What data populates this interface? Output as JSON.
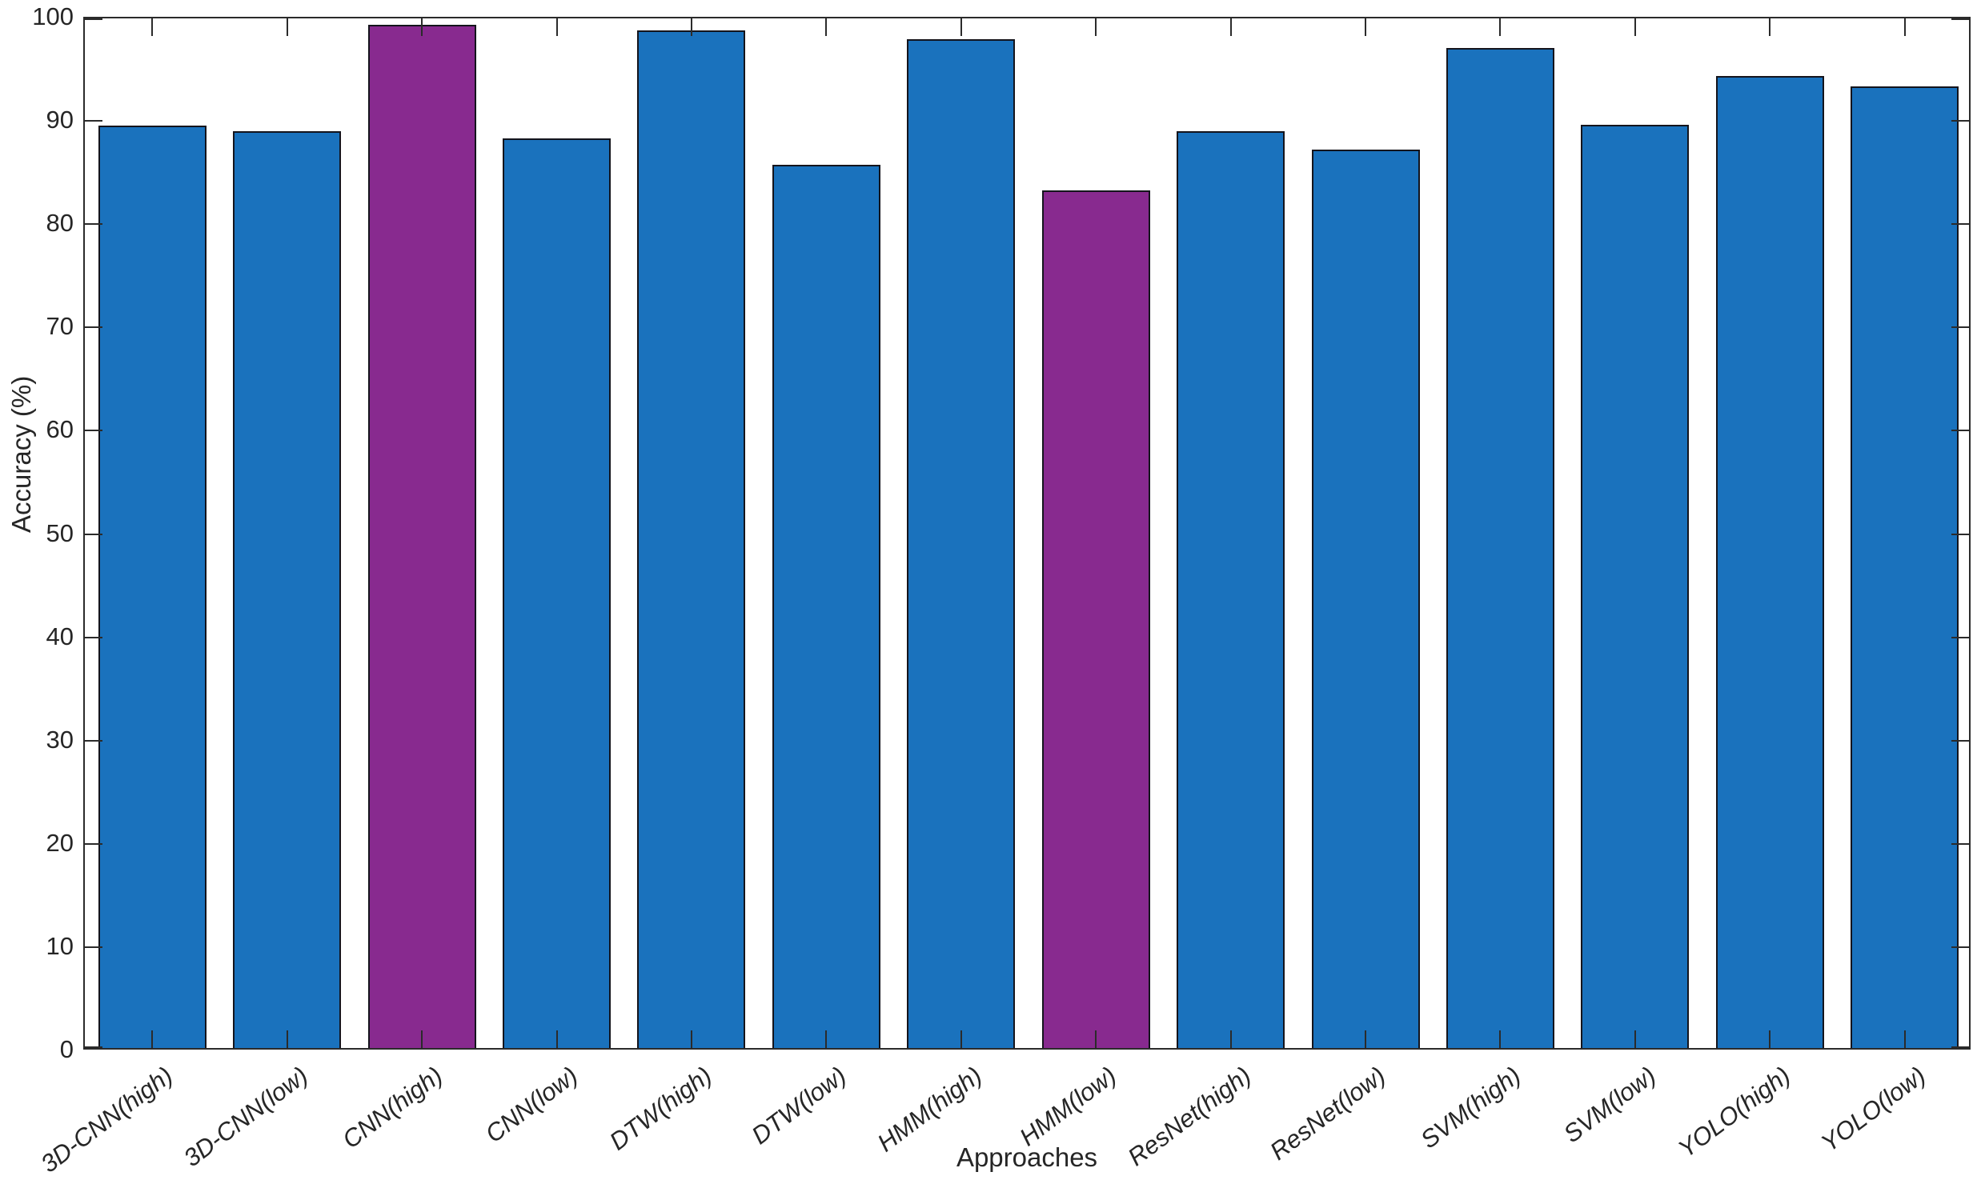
{
  "chart_data": {
    "type": "bar",
    "title": "",
    "xlabel": "Approaches",
    "ylabel": "Accuracy (%)",
    "categories": [
      "3D-CNN(high)",
      "3D-CNN(low)",
      "CNN(high)",
      "CNN(low)",
      "DTW(high)",
      "DTW(low)",
      "HMM(high)",
      "HMM(low)",
      "ResNet(high)",
      "ResNet(low)",
      "SVM(high)",
      "SVM(low)",
      "YOLO(high)",
      "YOLO(low)"
    ],
    "values": [
      89.3,
      88.8,
      99.1,
      88.1,
      98.5,
      85.5,
      97.7,
      83.0,
      88.8,
      87.0,
      96.8,
      89.4,
      94.1,
      93.1
    ],
    "highlighted_categories": [
      "CNN(high)",
      "HMM(low)"
    ],
    "ylim": [
      0,
      100
    ],
    "yticks": [
      0,
      10,
      20,
      30,
      40,
      50,
      60,
      70,
      80,
      90,
      100
    ],
    "grid": false,
    "legend": null,
    "colors": {
      "bar_default": "#1a72bd",
      "bar_highlight": "#882a8f",
      "bar_edge": "#14141c",
      "axis": "#2b2b2b",
      "text": "#262626",
      "background": "#ffffff"
    }
  }
}
